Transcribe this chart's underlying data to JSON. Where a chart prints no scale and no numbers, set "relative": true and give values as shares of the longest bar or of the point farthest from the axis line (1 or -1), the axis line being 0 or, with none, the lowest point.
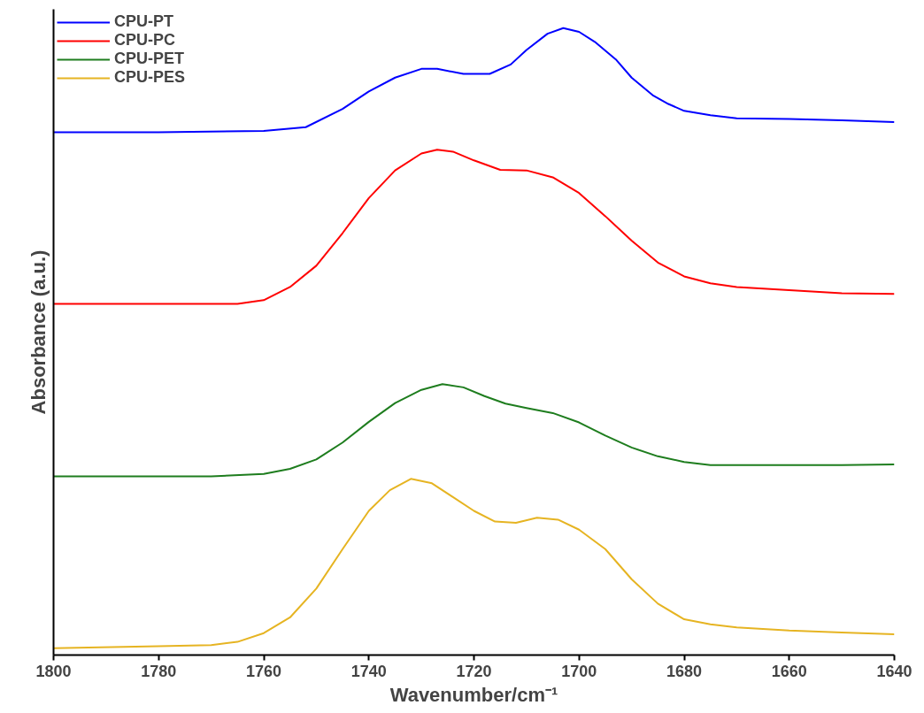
{
  "chart_data": {
    "type": "line",
    "relative": true,
    "xlabel": "Wavenumber/cm⁻¹",
    "ylabel": "Absorbance (a.u.)",
    "xlim": [
      1800,
      1640
    ],
    "xticks": [
      1800,
      1780,
      1760,
      1740,
      1720,
      1700,
      1680,
      1660,
      1640
    ],
    "grid": false,
    "legend": "top left",
    "marker": "none",
    "line_style": "solid",
    "series": [
      {
        "name": "CPU-PT",
        "color": "#0000ff",
        "x": [
          1800,
          1780,
          1760,
          1752,
          1745,
          1740,
          1735,
          1730,
          1727,
          1722,
          1717,
          1713,
          1710,
          1706,
          1703,
          1700,
          1697,
          1693,
          1690,
          1686,
          1683,
          1680,
          1675,
          1670,
          1660,
          1650,
          1640
        ],
        "values": [
          0.834,
          0.834,
          0.836,
          0.842,
          0.871,
          0.899,
          0.921,
          0.935,
          0.935,
          0.927,
          0.927,
          0.942,
          0.965,
          0.991,
          1.0,
          0.994,
          0.978,
          0.95,
          0.921,
          0.893,
          0.879,
          0.868,
          0.861,
          0.856,
          0.855,
          0.853,
          0.85
        ]
      },
      {
        "name": "CPU-PC",
        "color": "#ff0000",
        "x": [
          1800,
          1765,
          1760,
          1755,
          1750,
          1745,
          1740,
          1735,
          1730,
          1727,
          1724,
          1720,
          1715,
          1710,
          1705,
          1700,
          1695,
          1690,
          1685,
          1680,
          1675,
          1670,
          1660,
          1650,
          1640
        ],
        "values": [
          0.56,
          0.56,
          0.566,
          0.587,
          0.621,
          0.673,
          0.729,
          0.773,
          0.8,
          0.806,
          0.803,
          0.789,
          0.774,
          0.773,
          0.762,
          0.737,
          0.7,
          0.661,
          0.626,
          0.604,
          0.593,
          0.587,
          0.582,
          0.577,
          0.576
        ]
      },
      {
        "name": "CPU-PET",
        "color": "#1e7d1e",
        "x": [
          1800,
          1770,
          1760,
          1755,
          1750,
          1745,
          1740,
          1735,
          1730,
          1726,
          1722,
          1718,
          1714,
          1710,
          1705,
          1700,
          1695,
          1690,
          1685,
          1680,
          1675,
          1660,
          1650,
          1640
        ],
        "values": [
          0.285,
          0.285,
          0.289,
          0.297,
          0.312,
          0.339,
          0.372,
          0.402,
          0.423,
          0.432,
          0.427,
          0.413,
          0.401,
          0.394,
          0.386,
          0.371,
          0.35,
          0.331,
          0.317,
          0.308,
          0.303,
          0.303,
          0.303,
          0.304
        ]
      },
      {
        "name": "CPU-PES",
        "color": "#e6b422",
        "x": [
          1800,
          1780,
          1770,
          1765,
          1760,
          1755,
          1750,
          1745,
          1740,
          1736,
          1732,
          1728,
          1724,
          1720,
          1716,
          1712,
          1708,
          1704,
          1700,
          1695,
          1690,
          1685,
          1680,
          1675,
          1670,
          1660,
          1650,
          1640
        ],
        "values": [
          0.011,
          0.014,
          0.016,
          0.021,
          0.035,
          0.06,
          0.106,
          0.169,
          0.23,
          0.263,
          0.281,
          0.274,
          0.252,
          0.23,
          0.213,
          0.211,
          0.219,
          0.216,
          0.2,
          0.169,
          0.121,
          0.082,
          0.057,
          0.049,
          0.044,
          0.039,
          0.036,
          0.033
        ]
      }
    ]
  }
}
